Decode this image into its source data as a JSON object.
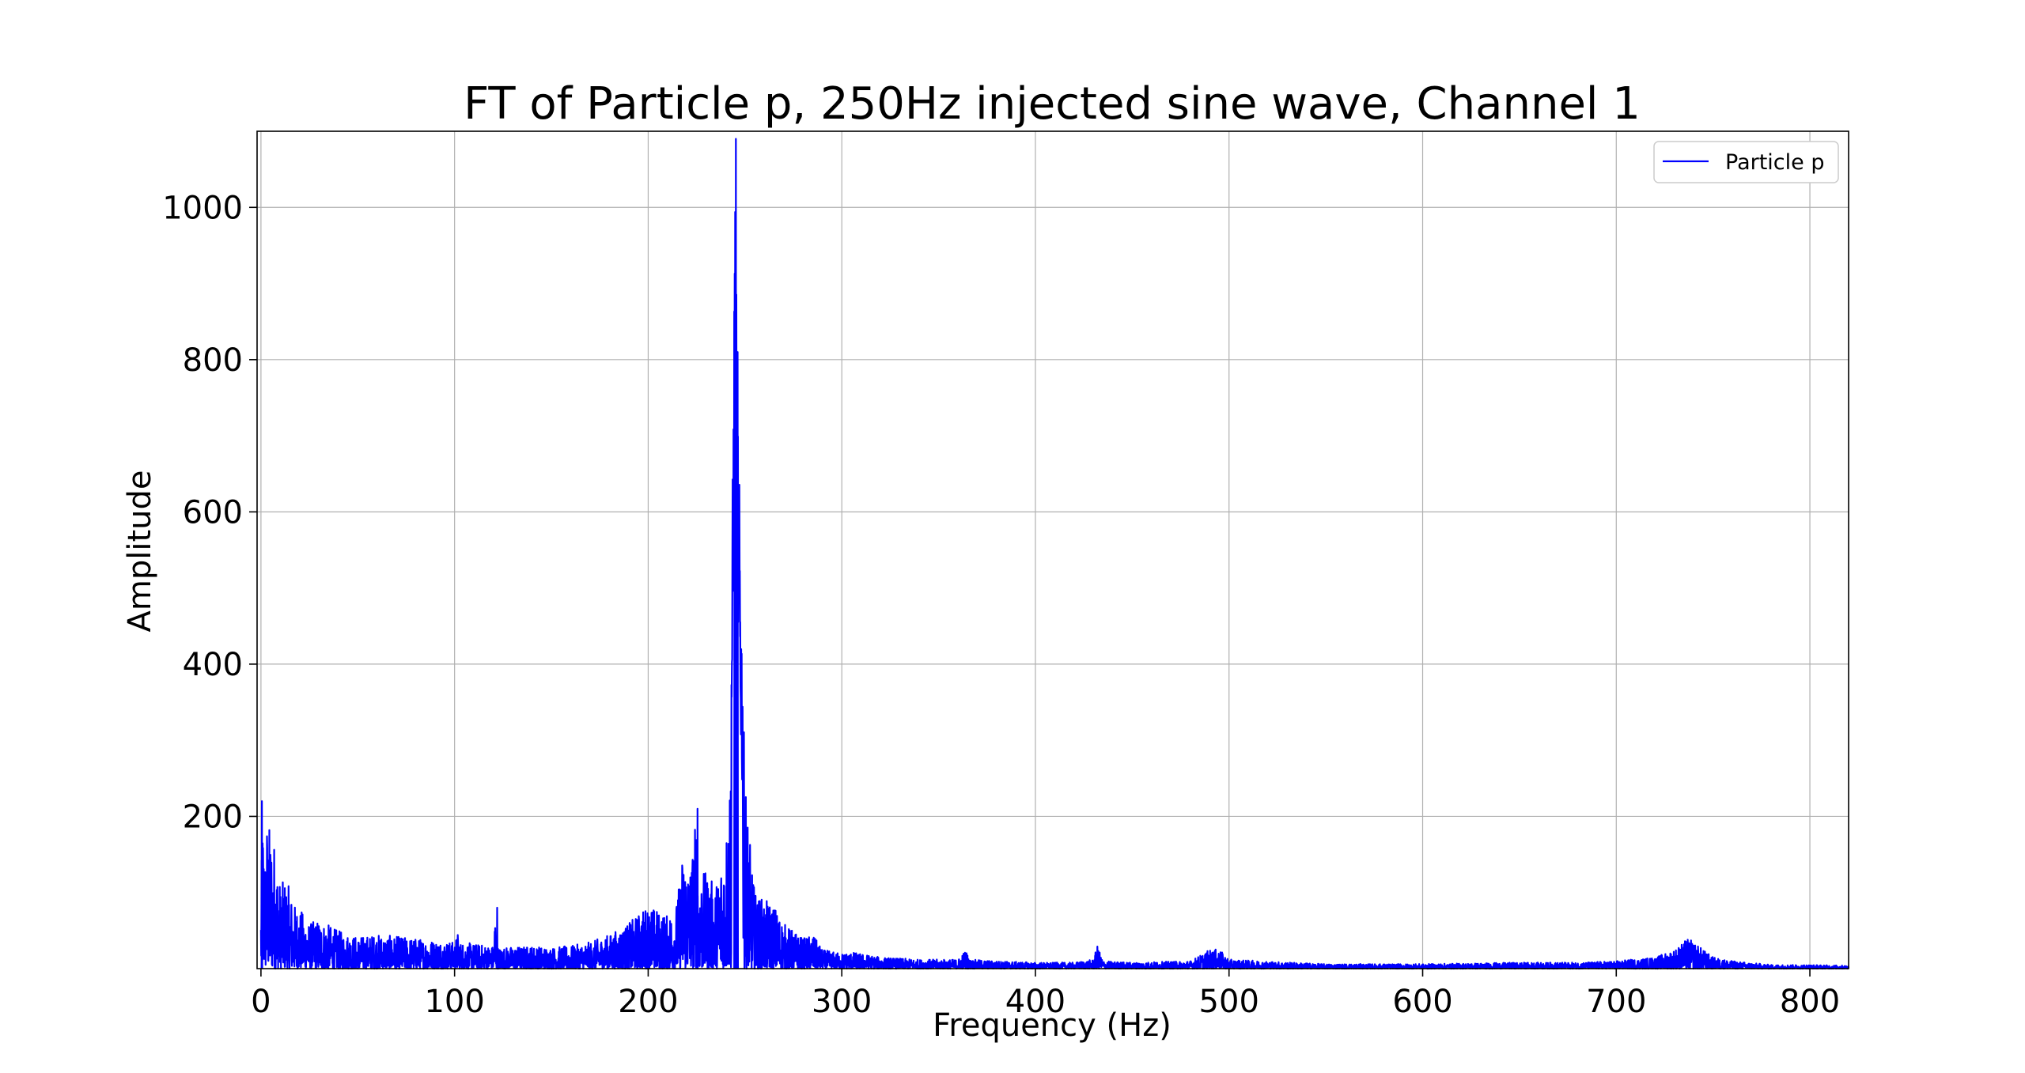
{
  "chart_data": {
    "type": "line",
    "title": "FT of Particle p, 250Hz injected sine wave, Channel 1",
    "xlabel": "Frequency (Hz)",
    "ylabel": "Amplitude",
    "xlim": [
      -2,
      820
    ],
    "ylim": [
      0,
      1100
    ],
    "xticks": [
      0,
      100,
      200,
      300,
      400,
      500,
      600,
      700,
      800
    ],
    "xtick_labels": [
      "0",
      "100",
      "200",
      "300",
      "400",
      "500",
      "600",
      "700",
      "800"
    ],
    "yticks": [
      200,
      400,
      600,
      800,
      1000
    ],
    "ytick_labels": [
      "200",
      "400",
      "600",
      "800",
      "1000"
    ],
    "grid": true,
    "legend_position": "top-right",
    "series": [
      {
        "name": "Particle p",
        "color": "#0000ff",
        "envelope_x": [
          0,
          1,
          2,
          3,
          5,
          7,
          10,
          13,
          17,
          20,
          25,
          30,
          40,
          50,
          60,
          80,
          100,
          102,
          103,
          120,
          121,
          122,
          123,
          140,
          150,
          160,
          170,
          180,
          190,
          200,
          203,
          210,
          215,
          218,
          220,
          222,
          225,
          226,
          227,
          230,
          235,
          240,
          242,
          243,
          244,
          245,
          246,
          247,
          248,
          249,
          250,
          252,
          255,
          260,
          265,
          270,
          280,
          285,
          290,
          300,
          305,
          320,
          340,
          360,
          364,
          366,
          380,
          400,
          420,
          430,
          432,
          435,
          450,
          480,
          490,
          495,
          500,
          550,
          600,
          650,
          680,
          700,
          720,
          730,
          737,
          740,
          745,
          750,
          760,
          780,
          800,
          820
        ],
        "envelope_y": [
          100,
          220,
          150,
          200,
          185,
          170,
          110,
          120,
          85,
          80,
          60,
          65,
          50,
          42,
          45,
          40,
          35,
          50,
          35,
          30,
          80,
          30,
          28,
          30,
          28,
          30,
          35,
          45,
          60,
          85,
          80,
          70,
          90,
          160,
          150,
          140,
          210,
          130,
          130,
          125,
          110,
          180,
          240,
          450,
          780,
          1090,
          810,
          650,
          500,
          350,
          270,
          180,
          100,
          90,
          85,
          60,
          40,
          45,
          25,
          20,
          22,
          15,
          12,
          12,
          25,
          12,
          10,
          8,
          8,
          12,
          30,
          10,
          8,
          10,
          25,
          25,
          12,
          6,
          6,
          8,
          8,
          10,
          15,
          25,
          40,
          35,
          25,
          15,
          10,
          5,
          5,
          4
        ]
      }
    ]
  }
}
